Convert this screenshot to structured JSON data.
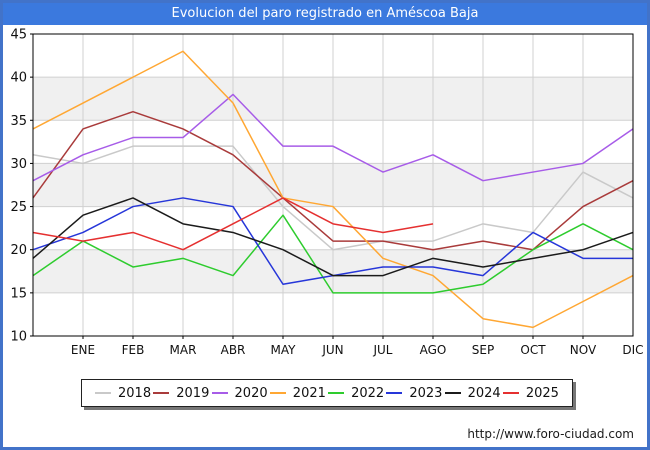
{
  "window": {
    "footer_url": "http://www.foro-ciudad.com"
  },
  "chart_data": {
    "type": "line",
    "title": "Evolucion del paro registrado en Améscoa Baja",
    "x_labels": [
      "ENE",
      "FEB",
      "MAR",
      "ABR",
      "MAY",
      "JUN",
      "JUL",
      "AGO",
      "SEP",
      "OCT",
      "NOV",
      "DIC"
    ],
    "y_ticks": [
      45,
      40,
      35,
      30,
      25,
      20,
      15,
      10
    ],
    "ylim": [
      10,
      45
    ],
    "grid": true,
    "legend_position": "bottom",
    "values_note": "13 points per full series: first point sits on the left axis (previous December), then ENE..DIC at each gridline; 2025 runs only through AGO",
    "shaded_bands": [
      [
        35,
        40
      ],
      [
        25,
        30
      ],
      [
        15,
        20
      ]
    ],
    "series": [
      {
        "name": "2018",
        "color": "#c9c9c9",
        "values": [
          31,
          30,
          32,
          32,
          32,
          25,
          20,
          21,
          21,
          23,
          22,
          29,
          26
        ]
      },
      {
        "name": "2019",
        "color": "#a93b3b",
        "values": [
          26,
          34,
          36,
          34,
          31,
          26,
          21,
          21,
          20,
          21,
          20,
          25,
          28
        ]
      },
      {
        "name": "2020",
        "color": "#a75ce8",
        "values": [
          28,
          31,
          33,
          33,
          38,
          32,
          32,
          29,
          31,
          28,
          29,
          30,
          34
        ]
      },
      {
        "name": "2021",
        "color": "#ffa733",
        "values": [
          34,
          37,
          40,
          43,
          37,
          26,
          25,
          19,
          17,
          12,
          11,
          14,
          17
        ]
      },
      {
        "name": "2022",
        "color": "#2ecc2e",
        "values": [
          17,
          21,
          18,
          19,
          17,
          24,
          15,
          15,
          15,
          16,
          20,
          23,
          20
        ]
      },
      {
        "name": "2023",
        "color": "#2636d9",
        "values": [
          20,
          22,
          25,
          26,
          25,
          16,
          17,
          18,
          18,
          17,
          22,
          19,
          19
        ]
      },
      {
        "name": "2024",
        "color": "#1b1b1b",
        "values": [
          19,
          24,
          26,
          23,
          22,
          20,
          17,
          17,
          19,
          18,
          19,
          20,
          22
        ]
      },
      {
        "name": "2025",
        "color": "#e53030",
        "values": [
          22,
          21,
          22,
          20,
          23,
          26,
          23,
          22,
          23
        ]
      }
    ],
    "colors": {
      "frame_border": "#4273c9",
      "title_bar": "#3b79de",
      "title_text": "#ffffff",
      "plot_border": "#000000",
      "gridline": "#d0d0d0",
      "band": "#f0f0f0",
      "tick_text": "#111111"
    }
  }
}
